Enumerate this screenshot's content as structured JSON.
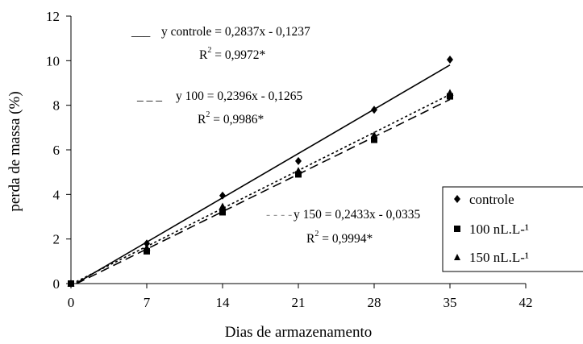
{
  "chart_data": {
    "type": "scatter",
    "xlabel": "Dias de armazenamento",
    "ylabel": "perda de massa (%)",
    "xlim": [
      0,
      42
    ],
    "ylim": [
      0,
      12
    ],
    "xticks": [
      0,
      7,
      14,
      21,
      28,
      35,
      42
    ],
    "yticks": [
      0,
      2,
      4,
      6,
      8,
      10,
      12
    ],
    "legend_position": "right",
    "grid": false,
    "series": [
      {
        "name": "controle",
        "marker": "diamond",
        "line_style": "solid",
        "x": [
          0,
          7,
          14,
          21,
          28,
          35
        ],
        "y": [
          0,
          1.8,
          3.95,
          5.5,
          7.8,
          10.05
        ],
        "trend": {
          "slope": 0.2837,
          "intercept": -0.1237
        },
        "equation": "y controle = 0,2837x - 0,1237",
        "r2_label": "R",
        "r2_sup": "2",
        "r2_value": " = 0,9972*",
        "legend_line": "___"
      },
      {
        "name": "100 nL.L-¹",
        "marker": "square",
        "line_style": "dashed",
        "x": [
          0,
          7,
          14,
          21,
          28,
          35
        ],
        "y": [
          0,
          1.45,
          3.2,
          4.9,
          6.45,
          8.4
        ],
        "trend": {
          "slope": 0.2396,
          "intercept": -0.1265
        },
        "equation": "y 100 = 0,2396x - 0,1265",
        "r2_label": "R",
        "r2_sup": "2",
        "r2_value": " = 0,9986*",
        "legend_line": "_ _ _"
      },
      {
        "name": "150 nL.L-¹",
        "marker": "triangle",
        "line_style": "dotted",
        "x": [
          0,
          7,
          14,
          21,
          28,
          35
        ],
        "y": [
          0,
          1.6,
          3.45,
          5.05,
          6.65,
          8.55
        ],
        "trend": {
          "slope": 0.2433,
          "intercept": -0.0335
        },
        "equation": "y 150 = 0,2433x - 0,0335",
        "r2_label": "R",
        "r2_sup": "2",
        "r2_value": " = 0,9994*",
        "legend_line": "- - - -"
      }
    ]
  }
}
